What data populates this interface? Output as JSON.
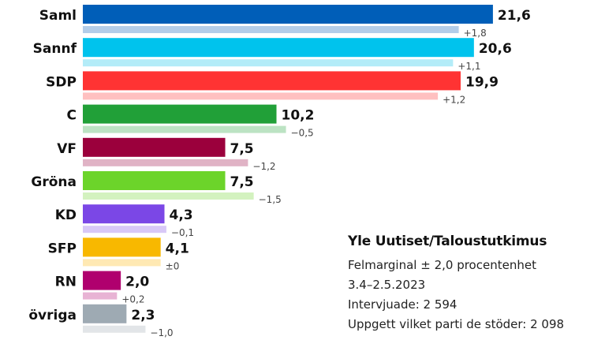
{
  "chart_data": {
    "type": "bar",
    "orientation": "horizontal",
    "title": "Yle Uutiset/Taloustutkimus",
    "categories": [
      "Saml",
      "Sannf",
      "SDP",
      "C",
      "VF",
      "Gröna",
      "KD",
      "SFP",
      "RN",
      "övriga"
    ],
    "series": [
      {
        "name": "Stöd",
        "values": [
          21.6,
          20.6,
          19.9,
          10.2,
          7.5,
          7.5,
          4.3,
          4.1,
          2.0,
          2.3
        ]
      },
      {
        "name": "Förändring",
        "values": [
          1.8,
          1.1,
          1.2,
          -0.5,
          -1.2,
          -1.5,
          -0.1,
          0.0,
          0.2,
          -1.0
        ]
      }
    ],
    "value_labels": [
      "21,6",
      "20,6",
      "19,9",
      "10,2",
      "7,5",
      "7,5",
      "4,3",
      "4,1",
      "2,0",
      "2,3"
    ],
    "change_labels": [
      "+1,8",
      "+1,1",
      "+1,2",
      "−0,5",
      "−1,2",
      "−1,5",
      "−0,1",
      "±0",
      "+0,2",
      "−1,0"
    ],
    "colors": [
      "#005eb8",
      "#00c3ed",
      "#ff3333",
      "#21a038",
      "#9b003c",
      "#6cd42a",
      "#7b47e6",
      "#f8b800",
      "#b0006e",
      "#9eaab3"
    ],
    "light_colors": [
      "#b3cde9",
      "#b3ecf8",
      "#ffc0c0",
      "#bce3c3",
      "#e0b3c5",
      "#d3f2bf",
      "#d8c8f7",
      "#ffe9b3",
      "#e8b3d4",
      "#e2e5e8"
    ],
    "xlabel": "",
    "ylabel": "",
    "grid": false
  },
  "info": {
    "title": "Yle Uutiset/Taloustutkimus",
    "margin": "Felmarginal ± 2,0 procentenhet",
    "dates": "3.4–2.5.2023",
    "interviewed": "Intervjuade: 2 594",
    "stated": "Uppgett vilket parti de stöder: 2 098"
  }
}
